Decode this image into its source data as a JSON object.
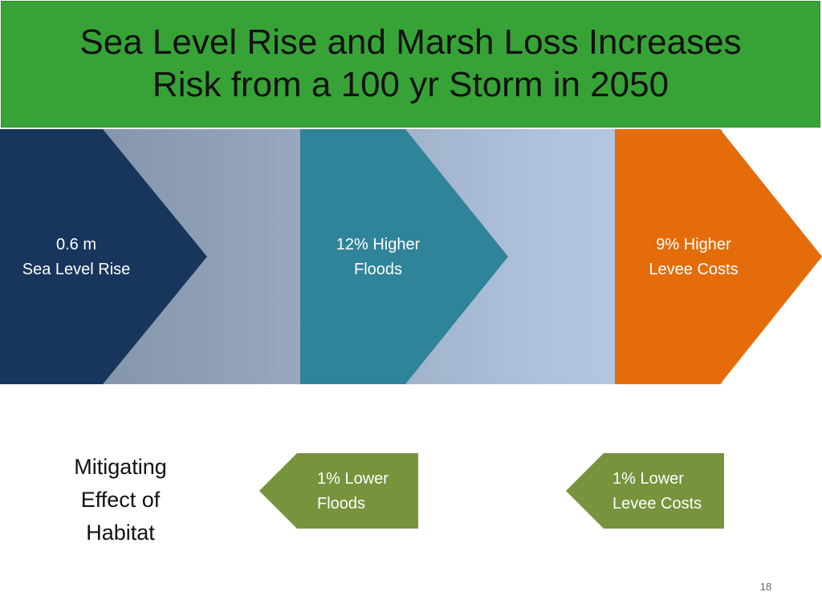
{
  "title": {
    "line1": "Sea Level Rise and Marsh Loss Increases",
    "line2": "Risk from a 100 yr Storm in 2050"
  },
  "colors": {
    "title_bg": "#37a337",
    "step1": "#18365c",
    "step2": "#2f8499",
    "step3": "#e46c0a",
    "mitigation": "#77933c",
    "band_left": "#7b8da3",
    "band_right": "#b7cce6"
  },
  "steps": [
    {
      "line1": "0.6 m",
      "line2": "Sea Level Rise"
    },
    {
      "line1": "12% Higher",
      "line2": "Floods"
    },
    {
      "line1": "9% Higher",
      "line2": "Levee Costs"
    }
  ],
  "mitigation": {
    "heading": {
      "line1": "Mitigating",
      "line2": "Effect of",
      "line3": "Habitat"
    },
    "items": [
      {
        "line1": "1% Lower",
        "line2": "Floods"
      },
      {
        "line1": "1% Lower",
        "line2": "Levee Costs"
      }
    ]
  },
  "page_number": "18"
}
